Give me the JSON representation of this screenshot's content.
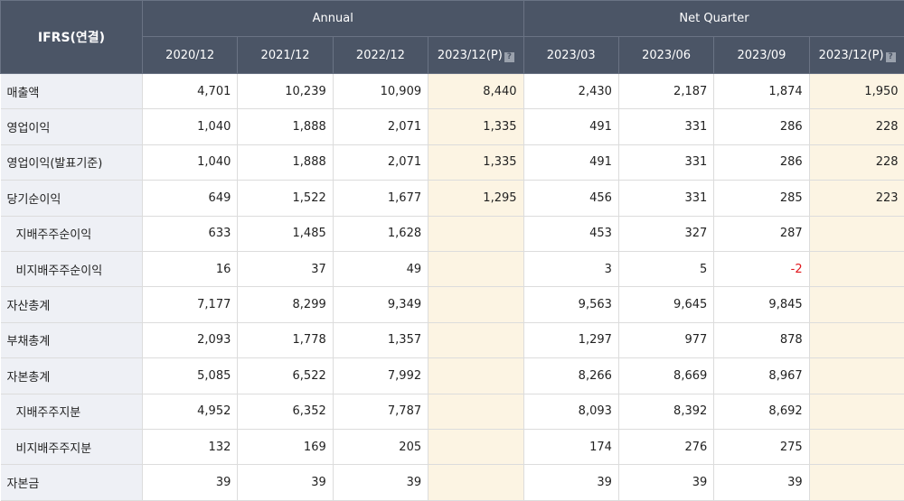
{
  "header": {
    "corner": "IFRS(연결)",
    "groups": [
      {
        "label": "Annual",
        "cols": [
          "2020/12",
          "2021/12",
          "2022/12",
          "2023/12(P)"
        ]
      },
      {
        "label": "Net Quarter",
        "cols": [
          "2023/03",
          "2023/06",
          "2023/09",
          "2023/12(P)"
        ]
      }
    ],
    "help_glyph": "?"
  },
  "rows": [
    {
      "label": "매출액",
      "sub": false,
      "values": [
        "4,701",
        "10,239",
        "10,909",
        "8,440",
        "2,430",
        "2,187",
        "1,874",
        "1,950"
      ]
    },
    {
      "label": "영업이익",
      "sub": false,
      "values": [
        "1,040",
        "1,888",
        "2,071",
        "1,335",
        "491",
        "331",
        "286",
        "228"
      ]
    },
    {
      "label": "영업이익(발표기준)",
      "sub": false,
      "values": [
        "1,040",
        "1,888",
        "2,071",
        "1,335",
        "491",
        "331",
        "286",
        "228"
      ]
    },
    {
      "label": "당기순이익",
      "sub": false,
      "values": [
        "649",
        "1,522",
        "1,677",
        "1,295",
        "456",
        "331",
        "285",
        "223"
      ]
    },
    {
      "label": "지배주주순이익",
      "sub": true,
      "values": [
        "633",
        "1,485",
        "1,628",
        "",
        "453",
        "327",
        "287",
        ""
      ]
    },
    {
      "label": "비지배주주순이익",
      "sub": true,
      "values": [
        "16",
        "37",
        "49",
        "",
        "3",
        "5",
        "-2",
        ""
      ]
    },
    {
      "label": "자산총계",
      "sub": false,
      "values": [
        "7,177",
        "8,299",
        "9,349",
        "",
        "9,563",
        "9,645",
        "9,845",
        ""
      ]
    },
    {
      "label": "부채총계",
      "sub": false,
      "values": [
        "2,093",
        "1,778",
        "1,357",
        "",
        "1,297",
        "977",
        "878",
        ""
      ]
    },
    {
      "label": "자본총계",
      "sub": false,
      "values": [
        "5,085",
        "6,522",
        "7,992",
        "",
        "8,266",
        "8,669",
        "8,967",
        ""
      ]
    },
    {
      "label": "지배주주지분",
      "sub": true,
      "values": [
        "4,952",
        "6,352",
        "7,787",
        "",
        "8,093",
        "8,392",
        "8,692",
        ""
      ]
    },
    {
      "label": "비지배주주지분",
      "sub": true,
      "values": [
        "132",
        "169",
        "205",
        "",
        "174",
        "276",
        "275",
        ""
      ]
    },
    {
      "label": "자본금",
      "sub": false,
      "values": [
        "39",
        "39",
        "39",
        "",
        "39",
        "39",
        "39",
        ""
      ]
    }
  ],
  "colors": {
    "header_bg": "#4b5566",
    "label_bg": "#eef0f5",
    "provisional_bg": "#fcf4e3",
    "negative": "#e0161c"
  }
}
